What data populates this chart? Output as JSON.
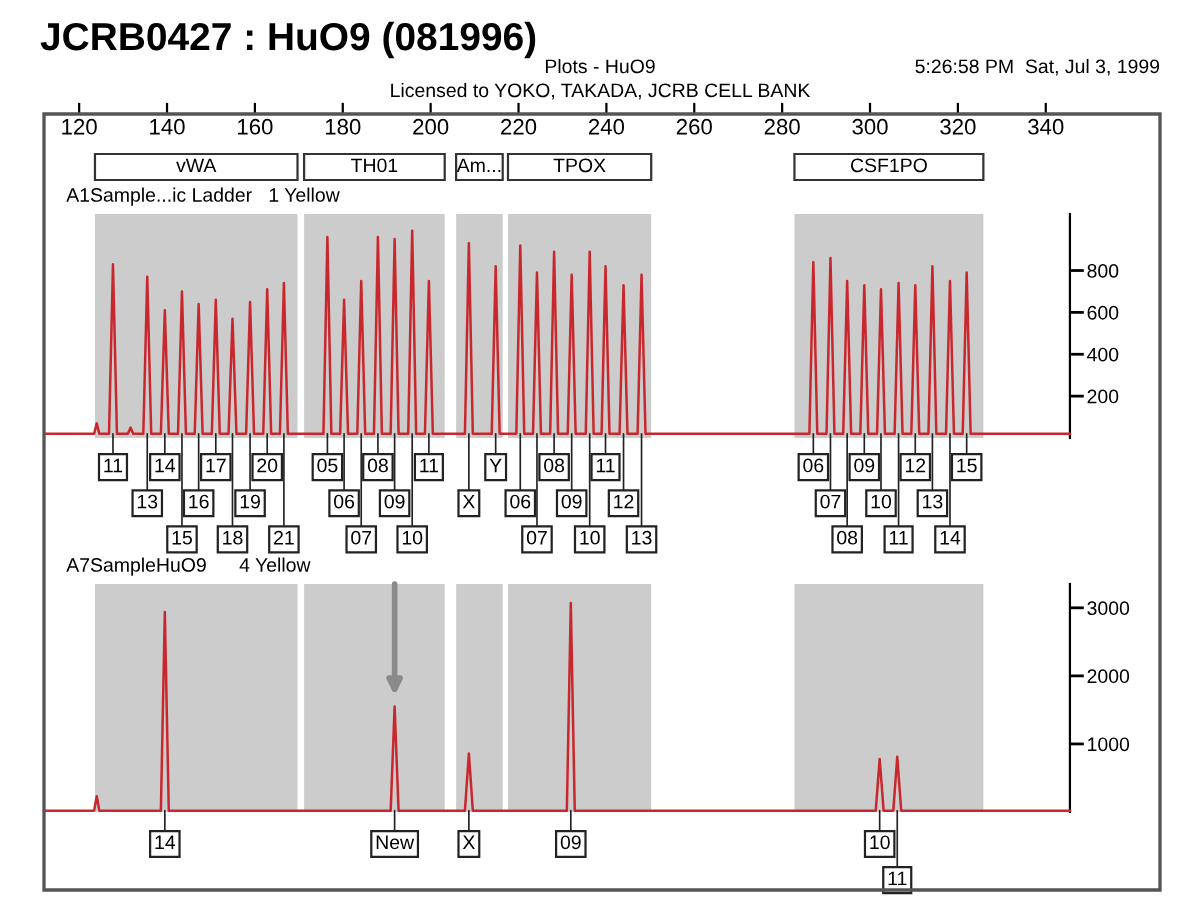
{
  "chart_data": [
    {
      "type": "line",
      "title": "JCRB0427 : HuO9 (081996)",
      "subtitle": "A1Sample...ic Ladder   1 Yellow",
      "x": [
        112,
        123.4,
        124.0,
        124.6,
        126.8,
        127.7,
        128.6,
        131.1,
        131.7,
        132.3,
        134.6,
        135.5,
        136.4,
        138.6,
        139.5,
        140.4,
        142.5,
        143.4,
        144.3,
        146.3,
        147.2,
        148.1,
        150.2,
        151.1,
        152.0,
        154.0,
        154.9,
        155.8,
        158.0,
        158.9,
        159.8,
        161.9,
        162.8,
        163.7,
        165.7,
        166.6,
        167.5,
        175.6,
        176.5,
        177.4,
        179.4,
        180.3,
        181.2,
        183.3,
        184.2,
        185.1,
        187.1,
        188.0,
        188.9,
        190.9,
        191.8,
        192.7,
        194.9,
        195.8,
        196.7,
        198.7,
        199.6,
        200.5,
        207.8,
        208.7,
        209.6,
        213.9,
        214.8,
        215.7,
        219.5,
        220.4,
        221.3,
        223.3,
        224.2,
        225.1,
        227.2,
        228.1,
        229.0,
        231.2,
        232.1,
        233.0,
        235.3,
        236.2,
        237.1,
        238.9,
        239.8,
        240.7,
        243.0,
        243.9,
        244.8,
        247.1,
        248.0,
        248.9,
        286.2,
        287.1,
        288.0,
        290.1,
        291.0,
        291.9,
        293.9,
        294.8,
        295.7,
        297.8,
        298.7,
        299.6,
        301.6,
        302.5,
        303.4,
        305.6,
        306.5,
        307.4,
        309.4,
        310.3,
        311.2,
        313.3,
        314.2,
        315.1,
        317.3,
        318.2,
        319.1,
        321.1,
        322.0,
        322.9,
        345.5
      ],
      "values": [
        20,
        20,
        70,
        20,
        20,
        830,
        20,
        20,
        50,
        20,
        20,
        770,
        20,
        20,
        610,
        20,
        20,
        700,
        20,
        20,
        640,
        20,
        20,
        660,
        20,
        20,
        570,
        20,
        20,
        650,
        20,
        20,
        710,
        20,
        20,
        740,
        20,
        20,
        960,
        20,
        20,
        660,
        20,
        20,
        750,
        20,
        20,
        960,
        20,
        20,
        950,
        20,
        20,
        990,
        20,
        20,
        750,
        20,
        20,
        930,
        20,
        20,
        820,
        20,
        20,
        920,
        20,
        20,
        790,
        20,
        20,
        890,
        20,
        20,
        780,
        20,
        20,
        890,
        20,
        20,
        820,
        20,
        20,
        730,
        20,
        20,
        780,
        20,
        20,
        840,
        20,
        20,
        860,
        20,
        20,
        750,
        20,
        20,
        730,
        20,
        20,
        710,
        20,
        20,
        740,
        20,
        20,
        730,
        20,
        20,
        820,
        20,
        20,
        750,
        20,
        20,
        790,
        20,
        20
      ],
      "color": "#c8282d",
      "xlim": [
        112,
        366
      ],
      "xticks": [
        120,
        140,
        160,
        180,
        200,
        220,
        240,
        260,
        280,
        300,
        320,
        340
      ],
      "ylim": [
        0,
        1070
      ],
      "yticks": [
        200,
        400,
        600,
        800
      ],
      "bands": [
        {
          "axis": "x",
          "from": 123.6,
          "to": 169.7,
          "label": "vWA",
          "color": "#cccccc"
        },
        {
          "axis": "x",
          "from": 171.2,
          "to": 203.2,
          "label": "TH01",
          "color": "#cccccc"
        },
        {
          "axis": "x",
          "from": 205.8,
          "to": 216.4,
          "label": "Am...",
          "color": "#cccccc"
        },
        {
          "axis": "x",
          "from": 217.6,
          "to": 250.2,
          "label": "TPOX",
          "color": "#cccccc"
        },
        {
          "axis": "x",
          "from": 282.8,
          "to": 325.8,
          "label": "CSF1PO",
          "color": "#cccccc"
        }
      ],
      "grid": false,
      "annotations": [
        "Plots - HuO9",
        "Licensed to YOKO, TAKADA, JCRB CELL BANK",
        "5:26:58 PM  Sat, Jul 3, 1999",
        {
          "text": "11",
          "x": 127.7,
          "y": 20
        },
        {
          "text": "13",
          "x": 135.5,
          "y": 20
        },
        {
          "text": "14",
          "x": 139.5,
          "y": 20
        },
        {
          "text": "15",
          "x": 143.4,
          "y": 20
        },
        {
          "text": "16",
          "x": 147.2,
          "y": 20
        },
        {
          "text": "17",
          "x": 151.1,
          "y": 20
        },
        {
          "text": "18",
          "x": 154.9,
          "y": 20
        },
        {
          "text": "19",
          "x": 158.9,
          "y": 20
        },
        {
          "text": "20",
          "x": 162.8,
          "y": 20
        },
        {
          "text": "21",
          "x": 166.6,
          "y": 20
        },
        {
          "text": "05",
          "x": 176.5,
          "y": 20
        },
        {
          "text": "06",
          "x": 180.3,
          "y": 20
        },
        {
          "text": "07",
          "x": 184.2,
          "y": 20
        },
        {
          "text": "08",
          "x": 188.0,
          "y": 20
        },
        {
          "text": "09",
          "x": 191.8,
          "y": 20
        },
        {
          "text": "10",
          "x": 195.8,
          "y": 20
        },
        {
          "text": "11",
          "x": 199.6,
          "y": 20
        },
        {
          "text": "X",
          "x": 208.7,
          "y": 20
        },
        {
          "text": "Y",
          "x": 214.8,
          "y": 20
        },
        {
          "text": "06",
          "x": 220.4,
          "y": 20
        },
        {
          "text": "07",
          "x": 224.2,
          "y": 20
        },
        {
          "text": "08",
          "x": 228.1,
          "y": 20
        },
        {
          "text": "09",
          "x": 232.1,
          "y": 20
        },
        {
          "text": "10",
          "x": 236.2,
          "y": 20
        },
        {
          "text": "11",
          "x": 239.8,
          "y": 20
        },
        {
          "text": "12",
          "x": 243.9,
          "y": 20
        },
        {
          "text": "13",
          "x": 248.0,
          "y": 20
        },
        {
          "text": "06",
          "x": 287.1,
          "y": 20
        },
        {
          "text": "07",
          "x": 291.0,
          "y": 20
        },
        {
          "text": "08",
          "x": 294.8,
          "y": 20
        },
        {
          "text": "09",
          "x": 298.7,
          "y": 20
        },
        {
          "text": "10",
          "x": 302.5,
          "y": 20
        },
        {
          "text": "11",
          "x": 306.5,
          "y": 20
        },
        {
          "text": "12",
          "x": 310.3,
          "y": 20
        },
        {
          "text": "13",
          "x": 314.2,
          "y": 20
        },
        {
          "text": "14",
          "x": 318.2,
          "y": 20
        },
        {
          "text": "15",
          "x": 322.0,
          "y": 20
        }
      ]
    },
    {
      "type": "line",
      "subtitle": "A7SampleHuO9      4 Yellow",
      "x": [
        112,
        123.4,
        124.0,
        124.6,
        138.6,
        139.5,
        140.4,
        190.9,
        191.8,
        192.7,
        207.8,
        208.7,
        209.6,
        231.0,
        231.9,
        232.8,
        301.3,
        302.2,
        303.1,
        305.3,
        306.2,
        307.1,
        345.5
      ],
      "values": [
        20,
        20,
        230,
        20,
        20,
        2940,
        20,
        20,
        1550,
        20,
        20,
        860,
        20,
        20,
        3070,
        20,
        20,
        780,
        20,
        20,
        810,
        20,
        20
      ],
      "color": "#c8282d",
      "xlim": [
        112,
        366
      ],
      "tick_labels": "y",
      "ylim": [
        0,
        3350
      ],
      "yticks": [
        1000,
        2000,
        3000
      ],
      "bands": [
        {
          "axis": "x",
          "from": 123.6,
          "to": 169.7,
          "color": "#cccccc"
        },
        {
          "axis": "x",
          "from": 171.2,
          "to": 203.2,
          "color": "#cccccc"
        },
        {
          "axis": "x",
          "from": 205.8,
          "to": 216.4,
          "color": "#cccccc"
        },
        {
          "axis": "x",
          "from": 217.6,
          "to": 250.2,
          "color": "#cccccc"
        },
        {
          "axis": "x",
          "from": 282.8,
          "to": 325.8,
          "color": "#cccccc"
        }
      ],
      "grid": false,
      "annotations": [
        {
          "text": "14",
          "x": 139.5,
          "y": 20
        },
        {
          "text": "New",
          "x": 191.8,
          "y": 20
        },
        {
          "text": "X",
          "x": 208.7,
          "y": 20
        },
        {
          "text": "09",
          "x": 231.9,
          "y": 20
        },
        {
          "text": "10",
          "x": 302.2,
          "y": 20
        },
        {
          "text": "11",
          "x": 306.2,
          "y": 20
        }
      ]
    }
  ]
}
